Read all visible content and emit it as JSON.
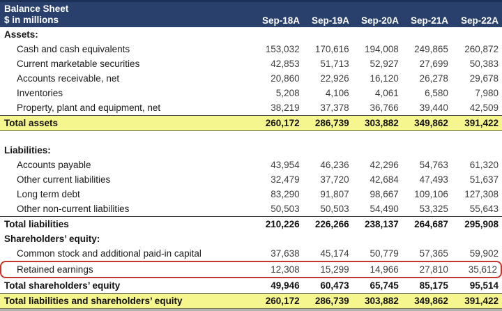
{
  "header": {
    "title": "Balance Sheet",
    "subtitle": "$ in millions",
    "columns": [
      "Sep-18A",
      "Sep-19A",
      "Sep-20A",
      "Sep-21A",
      "Sep-22A"
    ]
  },
  "colors": {
    "header_bg": "#2a406c",
    "header_bg_dark_edge": "#1c2f55",
    "highlight_yellow": "#f6f68f",
    "callout_red": "#c4372c",
    "rule_dark": "#3a3a3a"
  },
  "rows": [
    {
      "type": "section",
      "label": "Assets:"
    },
    {
      "type": "item",
      "label": "Cash and cash equivalents",
      "values": [
        "153,032",
        "170,616",
        "194,008",
        "249,865",
        "260,872"
      ]
    },
    {
      "type": "item",
      "label": "Current marketable securities",
      "values": [
        "42,853",
        "51,713",
        "52,927",
        "27,699",
        "50,383"
      ]
    },
    {
      "type": "item",
      "label": "Accounts receivable, net",
      "values": [
        "20,860",
        "22,926",
        "16,120",
        "26,278",
        "29,678"
      ]
    },
    {
      "type": "item",
      "label": "Inventories",
      "values": [
        "5,208",
        "4,106",
        "4,061",
        "6,580",
        "7,980"
      ]
    },
    {
      "type": "item",
      "label": "Property, plant and equipment, net",
      "values": [
        "38,219",
        "37,378",
        "36,766",
        "39,440",
        "42,509"
      ]
    },
    {
      "type": "total_highlight",
      "label": "Total assets",
      "values": [
        "260,172",
        "286,739",
        "303,882",
        "349,862",
        "391,422"
      ]
    },
    {
      "type": "blank",
      "label": ""
    },
    {
      "type": "section",
      "label": "Liabilities:"
    },
    {
      "type": "item",
      "label": "Accounts payable",
      "values": [
        "43,954",
        "46,236",
        "42,296",
        "54,763",
        "61,320"
      ]
    },
    {
      "type": "item",
      "label": "Other current liabilities",
      "values": [
        "32,479",
        "37,720",
        "42,684",
        "47,493",
        "51,637"
      ]
    },
    {
      "type": "item",
      "label": "Long term debt",
      "values": [
        "83,290",
        "91,807",
        "98,667",
        "109,106",
        "127,308"
      ]
    },
    {
      "type": "item",
      "label": "Other non-current liabilities",
      "values": [
        "50,503",
        "50,503",
        "54,490",
        "53,325",
        "55,643"
      ]
    },
    {
      "type": "total",
      "label": "Total liabilities",
      "values": [
        "210,226",
        "226,266",
        "238,137",
        "264,687",
        "295,908"
      ]
    },
    {
      "type": "section",
      "label": "Shareholders’ equity:"
    },
    {
      "type": "item",
      "label": "Common stock and additional paid-in capital",
      "values": [
        "37,638",
        "45,174",
        "50,779",
        "57,365",
        "59,902"
      ]
    },
    {
      "type": "item",
      "boxed": true,
      "label": "Retained earnings",
      "values": [
        "12,308",
        "15,299",
        "14,966",
        "27,810",
        "35,612"
      ]
    },
    {
      "type": "total",
      "label": "Total shareholders’ equity",
      "values": [
        "49,946",
        "60,473",
        "65,745",
        "85,175",
        "95,514"
      ]
    },
    {
      "type": "total_highlight",
      "label": "Total liabilities and shareholders’ equity",
      "values": [
        "260,172",
        "286,739",
        "303,882",
        "349,862",
        "391,422"
      ]
    }
  ]
}
